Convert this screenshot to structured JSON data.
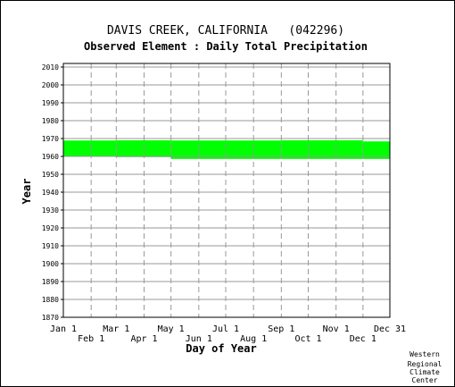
{
  "chart_data": {
    "type": "area",
    "title": "DAVIS CREEK, CALIFORNIA   (042296)",
    "subtitle": "Observed Element : Daily Total Precipitation",
    "xlabel": "Day of Year",
    "ylabel": "Year",
    "ylim": [
      1870,
      2012
    ],
    "yticks": [
      1870,
      1880,
      1890,
      1900,
      1910,
      1920,
      1930,
      1940,
      1950,
      1960,
      1970,
      1980,
      1990,
      2000,
      2010
    ],
    "xlim": [
      1,
      365
    ],
    "xticks": [
      {
        "label": "Jan 1",
        "day": 1,
        "row": 0
      },
      {
        "label": "Feb 1",
        "day": 32,
        "row": 1
      },
      {
        "label": "Mar 1",
        "day": 60,
        "row": 0
      },
      {
        "label": "Apr 1",
        "day": 91,
        "row": 1
      },
      {
        "label": "May 1",
        "day": 121,
        "row": 0
      },
      {
        "label": "Jun 1",
        "day": 152,
        "row": 1
      },
      {
        "label": "Jul 1",
        "day": 182,
        "row": 0
      },
      {
        "label": "Aug 1",
        "day": 213,
        "row": 1
      },
      {
        "label": "Sep 1",
        "day": 244,
        "row": 0
      },
      {
        "label": "Oct 1",
        "day": 274,
        "row": 1
      },
      {
        "label": "Nov 1",
        "day": 305,
        "row": 0
      },
      {
        "label": "Dec 1",
        "day": 335,
        "row": 1
      },
      {
        "label": "Dec 31",
        "day": 365,
        "row": 0
      }
    ],
    "grid": true,
    "series": [
      {
        "color": "#00ff00",
        "segments": [
          {
            "day_start": 1,
            "day_end": 60,
            "year_start": 1959.8,
            "year_end": 1968.9
          },
          {
            "day_start": 60,
            "day_end": 121,
            "year_start": 1959.6,
            "year_end": 1969.0
          },
          {
            "day_start": 121,
            "day_end": 244,
            "year_start": 1958.6,
            "year_end": 1968.9
          },
          {
            "day_start": 244,
            "day_end": 335,
            "year_start": 1958.6,
            "year_end": 1969.0
          },
          {
            "day_start": 335,
            "day_end": 365,
            "year_start": 1958.6,
            "year_end": 1968.4
          }
        ]
      }
    ]
  },
  "credit": [
    "Western",
    "Regional",
    "Climate",
    "Center"
  ]
}
